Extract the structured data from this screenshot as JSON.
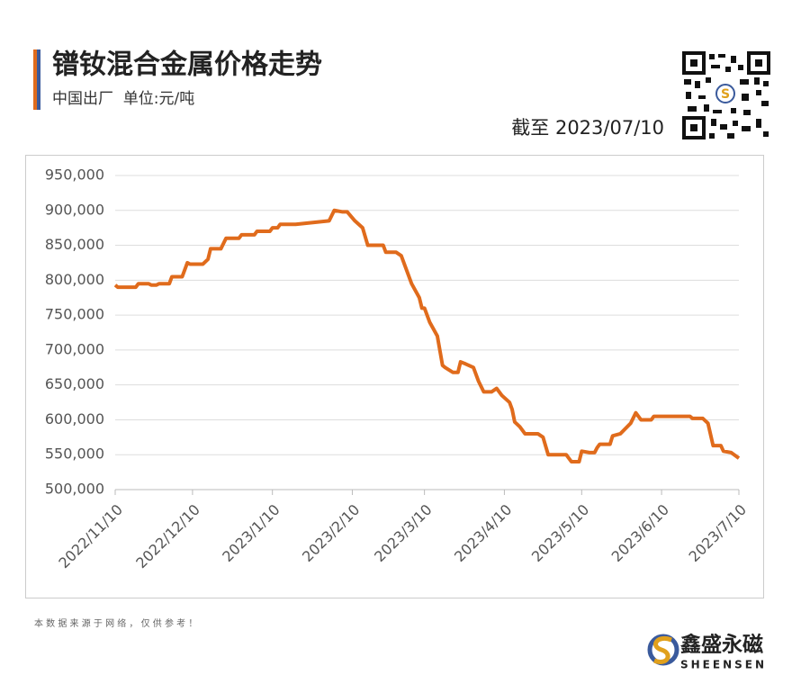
{
  "chart_data": {
    "type": "line",
    "title": "镨钕混合金属价格走势",
    "subtitle": "中国出厂  单位:元/吨",
    "date_note": "截至 2023/07/10",
    "source_note": "本 数 据 来 源 于 网 络 ， 仅 供 参 考 ！",
    "brand_name": "鑫盛永磁",
    "brand_name_en": "SHEENSEN",
    "x": [
      "2022/11/10",
      "2022/11/11",
      "2022/11/18",
      "2022/11/19",
      "2022/11/23",
      "2022/11/24",
      "2022/11/26",
      "2022/11/27",
      "2022/12/1",
      "2022/12/2",
      "2022/12/6",
      "2022/12/8",
      "2022/12/9",
      "2022/12/14",
      "2022/12/16",
      "2022/12/17",
      "2022/12/21",
      "2022/12/23",
      "2022/12/28",
      "2022/12/29",
      "2023/1/3",
      "2023/1/4",
      "2023/1/9",
      "2023/1/10",
      "2023/1/12",
      "2023/1/13",
      "2023/1/19",
      "2023/2/1",
      "2023/2/3",
      "2023/2/6",
      "2023/2/8",
      "2023/2/11",
      "2023/2/14",
      "2023/2/16",
      "2023/2/22",
      "2023/2/23",
      "2023/2/27",
      "2023/3/1",
      "2023/3/3",
      "2023/3/5",
      "2023/3/8",
      "2023/3/9",
      "2023/3/10",
      "2023/3/12",
      "2023/3/15",
      "2023/3/17",
      "2023/3/18",
      "2023/3/21",
      "2023/3/23",
      "2023/3/24",
      "2023/3/26",
      "2023/3/29",
      "2023/3/31",
      "2023/4/2",
      "2023/4/5",
      "2023/4/7",
      "2023/4/9",
      "2023/4/12",
      "2023/4/13",
      "2023/4/14",
      "2023/4/16",
      "2023/4/18",
      "2023/4/23",
      "2023/4/25",
      "2023/4/27",
      "2023/5/4",
      "2023/5/6",
      "2023/5/9",
      "2023/5/10",
      "2023/5/13",
      "2023/5/15",
      "2023/5/16",
      "2023/5/17",
      "2023/5/21",
      "2023/5/22",
      "2023/5/25",
      "2023/5/29",
      "2023/5/31",
      "2023/6/2",
      "2023/6/6",
      "2023/6/7",
      "2023/6/21",
      "2023/6/22",
      "2023/6/26",
      "2023/6/28",
      "2023/6/30",
      "2023/7/3",
      "2023/7/4",
      "2023/7/7",
      "2023/7/10"
    ],
    "series": [
      {
        "name": "价格",
        "color": "#e06b1c",
        "values": [
          793000,
          790000,
          790000,
          795000,
          795000,
          793000,
          793000,
          795000,
          795000,
          805000,
          805000,
          825000,
          823000,
          823000,
          830000,
          845000,
          845000,
          860000,
          860000,
          865000,
          865000,
          870000,
          870000,
          875000,
          875000,
          880000,
          880000,
          885000,
          900000,
          898000,
          898000,
          885000,
          875000,
          850000,
          850000,
          840000,
          840000,
          835000,
          815000,
          795000,
          775000,
          760000,
          760000,
          740000,
          720000,
          678000,
          675000,
          668000,
          668000,
          683000,
          680000,
          675000,
          655000,
          640000,
          640000,
          645000,
          635000,
          625000,
          615000,
          597000,
          590000,
          580000,
          580000,
          575000,
          550000,
          550000,
          540000,
          540000,
          555000,
          553000,
          553000,
          560000,
          565000,
          565000,
          577000,
          580000,
          595000,
          610000,
          600000,
          600000,
          605000,
          605000,
          602000,
          602000,
          595000,
          563000,
          563000,
          555000,
          553000,
          545000
        ]
      }
    ],
    "xlim": [
      "2022/11/10",
      "2023/7/10"
    ],
    "xticks": [
      "2022/11/10",
      "2022/12/10",
      "2023/1/10",
      "2023/2/10",
      "2023/3/10",
      "2023/4/10",
      "2023/5/10",
      "2023/6/10",
      "2023/7/10"
    ],
    "ylim": [
      500000,
      950000
    ],
    "yticks": [
      {
        "value": 500000,
        "label": "500,000"
      },
      {
        "value": 550000,
        "label": "550,000"
      },
      {
        "value": 600000,
        "label": "600,000"
      },
      {
        "value": 650000,
        "label": "650,000"
      },
      {
        "value": 700000,
        "label": "700,000"
      },
      {
        "value": 750000,
        "label": "750,000"
      },
      {
        "value": 800000,
        "label": "800,000"
      },
      {
        "value": 850000,
        "label": "850,000"
      },
      {
        "value": 900000,
        "label": "900,000"
      },
      {
        "value": 950000,
        "label": "950,000"
      }
    ],
    "grid": true
  }
}
